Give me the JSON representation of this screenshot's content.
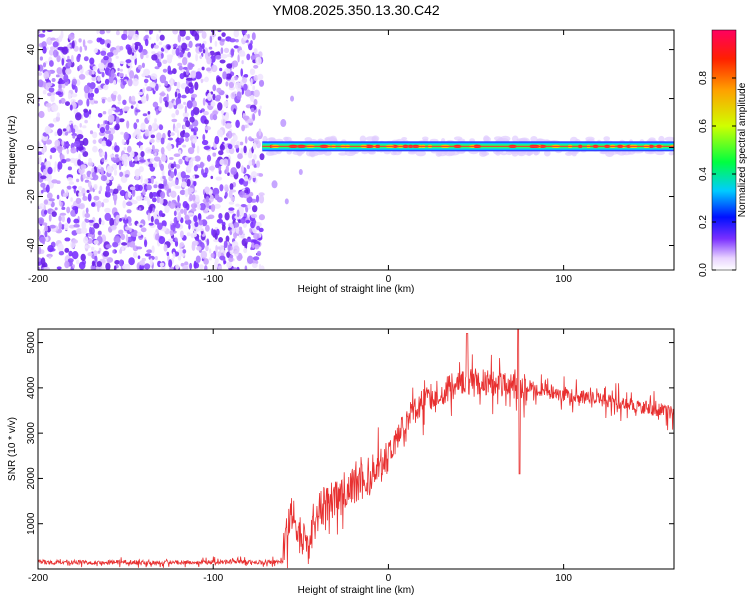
{
  "title": "YM08.2025.350.13.30.C42",
  "chart_data": [
    {
      "type": "heatmap",
      "name": "spectrogram",
      "xlabel": "Height of straight line (km)",
      "ylabel": "Frequency (Hz)",
      "xlim": [
        -200,
        163
      ],
      "ylim": [
        -50,
        48
      ],
      "xticks": [
        -200,
        -100,
        0,
        100
      ],
      "yticks": [
        -40,
        -20,
        0,
        20,
        40
      ],
      "colorbar": {
        "label": "Normalized spectral amplitude",
        "range": [
          0,
          1
        ],
        "ticks": [
          "0.0",
          "0.2",
          "0.4",
          "0.6",
          "0.8"
        ],
        "tick_values": [
          0,
          0.2,
          0.4,
          0.6,
          0.8
        ],
        "colors": [
          "#ffffff",
          "#e8d2ff",
          "#7a30ff",
          "#0010ff",
          "#00ccff",
          "#00ff40",
          "#d0ff00",
          "#ffa000",
          "#ff2000",
          "#ff0060"
        ]
      },
      "noise_region_x": [
        -200,
        -72
      ],
      "signal_line_freq": 0.5,
      "signal_region_x": [
        -72,
        163
      ]
    },
    {
      "type": "line",
      "name": "snr",
      "xlabel": "Height of straight line (km)",
      "ylabel": "SNR (10 * v/v)",
      "xlim": [
        -200,
        163
      ],
      "ylim": [
        0,
        5300
      ],
      "xticks": [
        -200,
        -100,
        0,
        100
      ],
      "yticks": [
        1000,
        2000,
        3000,
        4000,
        5000
      ],
      "color": "#e83030",
      "series_envelope": {
        "x": [
          -200,
          -60,
          -58,
          -55,
          -50,
          -45,
          -40,
          -30,
          -20,
          -10,
          0,
          10,
          20,
          30,
          40,
          50,
          60,
          70,
          80,
          90,
          100,
          110,
          120,
          130,
          140,
          150,
          163
        ],
        "y": [
          150,
          150,
          900,
          1200,
          700,
          500,
          1300,
          1600,
          1800,
          2100,
          2500,
          3300,
          3700,
          3900,
          4100,
          4150,
          4100,
          4050,
          4000,
          3950,
          3850,
          3800,
          3750,
          3700,
          3600,
          3550,
          3450
        ]
      }
    }
  ]
}
